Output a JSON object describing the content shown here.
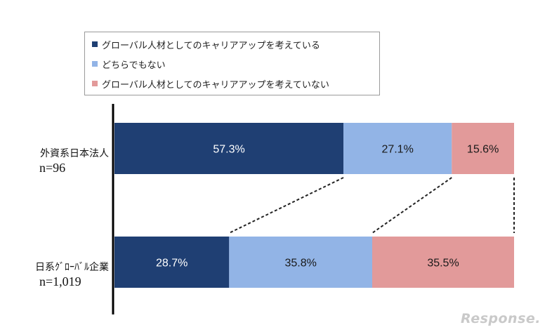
{
  "chart_data": {
    "type": "bar",
    "orientation": "horizontal",
    "stacked": true,
    "percent": true,
    "categories": [
      {
        "label": "外資系日本法人",
        "n": "n=96"
      },
      {
        "label": "日系ｸﾞﾛｰﾊﾞﾙ企業",
        "n": "n=1,019"
      }
    ],
    "series": [
      {
        "name": "グローバル人材としてのキャリアアップを考えている",
        "values": [
          57.3,
          28.7
        ],
        "labels": [
          "57.3%",
          "28.7%"
        ],
        "color": "#1f3f73",
        "label_color": "#ffffff"
      },
      {
        "name": "どちらでもない",
        "values": [
          27.1,
          35.8
        ],
        "labels": [
          "27.1%",
          "35.8%"
        ],
        "color": "#92b4e6",
        "label_color": "#1a1a1a"
      },
      {
        "name": "グローバル人材としてのキャリアアップを考えていない",
        "values": [
          15.6,
          35.5
        ],
        "labels": [
          "15.6%",
          "35.5%"
        ],
        "color": "#e29a9a",
        "label_color": "#1a1a1a"
      }
    ],
    "xlim": [
      0,
      100
    ],
    "legend_position": "top",
    "connector_lines": "dashed"
  },
  "watermark": {
    "text": "Response."
  }
}
